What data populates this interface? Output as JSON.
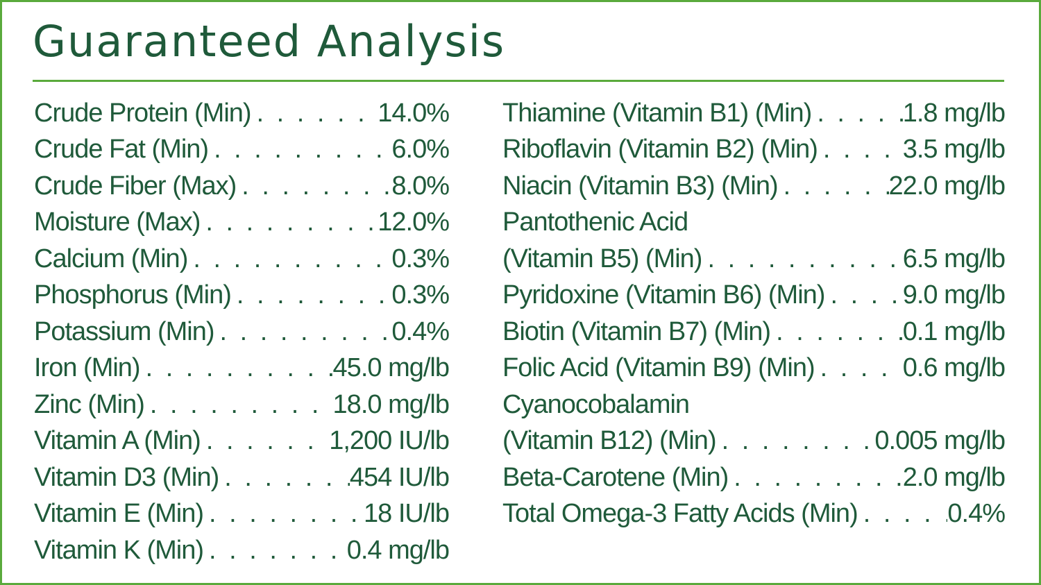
{
  "title": "Guaranteed Analysis",
  "left_column": [
    {
      "label": "Crude Protein (Min)",
      "dots": ". . . . . . . . . .",
      "value": "14.0%"
    },
    {
      "label": "Crude Fat (Min)",
      "dots": ". . . . . . . . . . . . . .",
      "value": "6.0%"
    },
    {
      "label": "Crude Fiber (Max)",
      "dots": ". . . . . . . . . . . .",
      "value": "8.0%"
    },
    {
      "label": "Moisture (Max)",
      "dots": ". . . . . . . . . . . . . .",
      "value": "12.0%"
    },
    {
      "label": "Calcium (Min)",
      "dots": ". . . . . . . . . . . . . . . . .",
      "value": "0.3%"
    },
    {
      "label": "Phosphorus (Min)",
      "dots": ". . . . . . . . . . . . . .",
      "value": "0.3%"
    },
    {
      "label": "Potassium (Min)",
      "dots": ". . . . . . . . . . . . . . .",
      "value": "0.4%"
    },
    {
      "label": "Iron (Min)",
      "dots": ". . . . . . . . . . . .",
      "value": "45.0 mg/lb"
    },
    {
      "label": "Zinc (Min)",
      "dots": ". . . . . . . . . . . . . .",
      "value": "18.0 mg/lb"
    },
    {
      "label": "Vitamin A (Min)",
      "dots": ". . . . . . . . . .",
      "value": "1,200 IU/lb"
    },
    {
      "label": "Vitamin D3 (Min)",
      "dots": ". . . . . . . . . . .",
      "value": "454 IU/lb"
    },
    {
      "label": "Vitamin E (Min)",
      "dots": ". . . . . . . . . . . . .",
      "value": "18 IU/lb"
    },
    {
      "label": "Vitamin K (Min)",
      "dots": ". . . . . . . . . . .",
      "value": "0.4 mg/lb"
    }
  ],
  "right_column": [
    {
      "label": "Thiamine (Vitamin B1) (Min)",
      "dots": ". . . . . . .",
      "value": "1.8 mg/lb"
    },
    {
      "label": "Riboflavin (Vitamin B2) (Min)",
      "dots": ". . . . .",
      "value": "3.5 mg/lb"
    },
    {
      "label": "Niacin (Vitamin B3) (Min)",
      "dots": ". . . . . . . .",
      "value": "22.0 mg/lb"
    },
    {
      "label": "Pantothenic Acid",
      "dots": "",
      "value": ""
    },
    {
      "label": "(Vitamin B5) (Min)",
      "dots": ". . . . . . . . . . . . . . .",
      "value": "6.5 mg/lb"
    },
    {
      "label": "Pyridoxine (Vitamin B6) (Min)",
      "dots": ". . . . .",
      "value": "9.0 mg/lb"
    },
    {
      "label": "Biotin (Vitamin B7) (Min)",
      "dots": ". . . . . . . . . .",
      "value": "0.1 mg/lb"
    },
    {
      "label": "Folic Acid (Vitamin B9) (Min)",
      "dots": ". . . . .",
      "value": "0.6 mg/lb"
    },
    {
      "label": "Cyanocobalamin",
      "dots": "",
      "value": ""
    },
    {
      "label": "(Vitamin B12) (Min)",
      "dots": ". . . . . . . . . . . .",
      "value": "0.005 mg/lb"
    },
    {
      "label": "Beta-Carotene (Min)",
      "dots": ". . . . . . . . . . . . .",
      "value": "2.0 mg/lb"
    },
    {
      "label": "Total Omega-3 Fatty Acids (Min)",
      "dots": ". . . . .",
      "value": "0.4%"
    }
  ]
}
